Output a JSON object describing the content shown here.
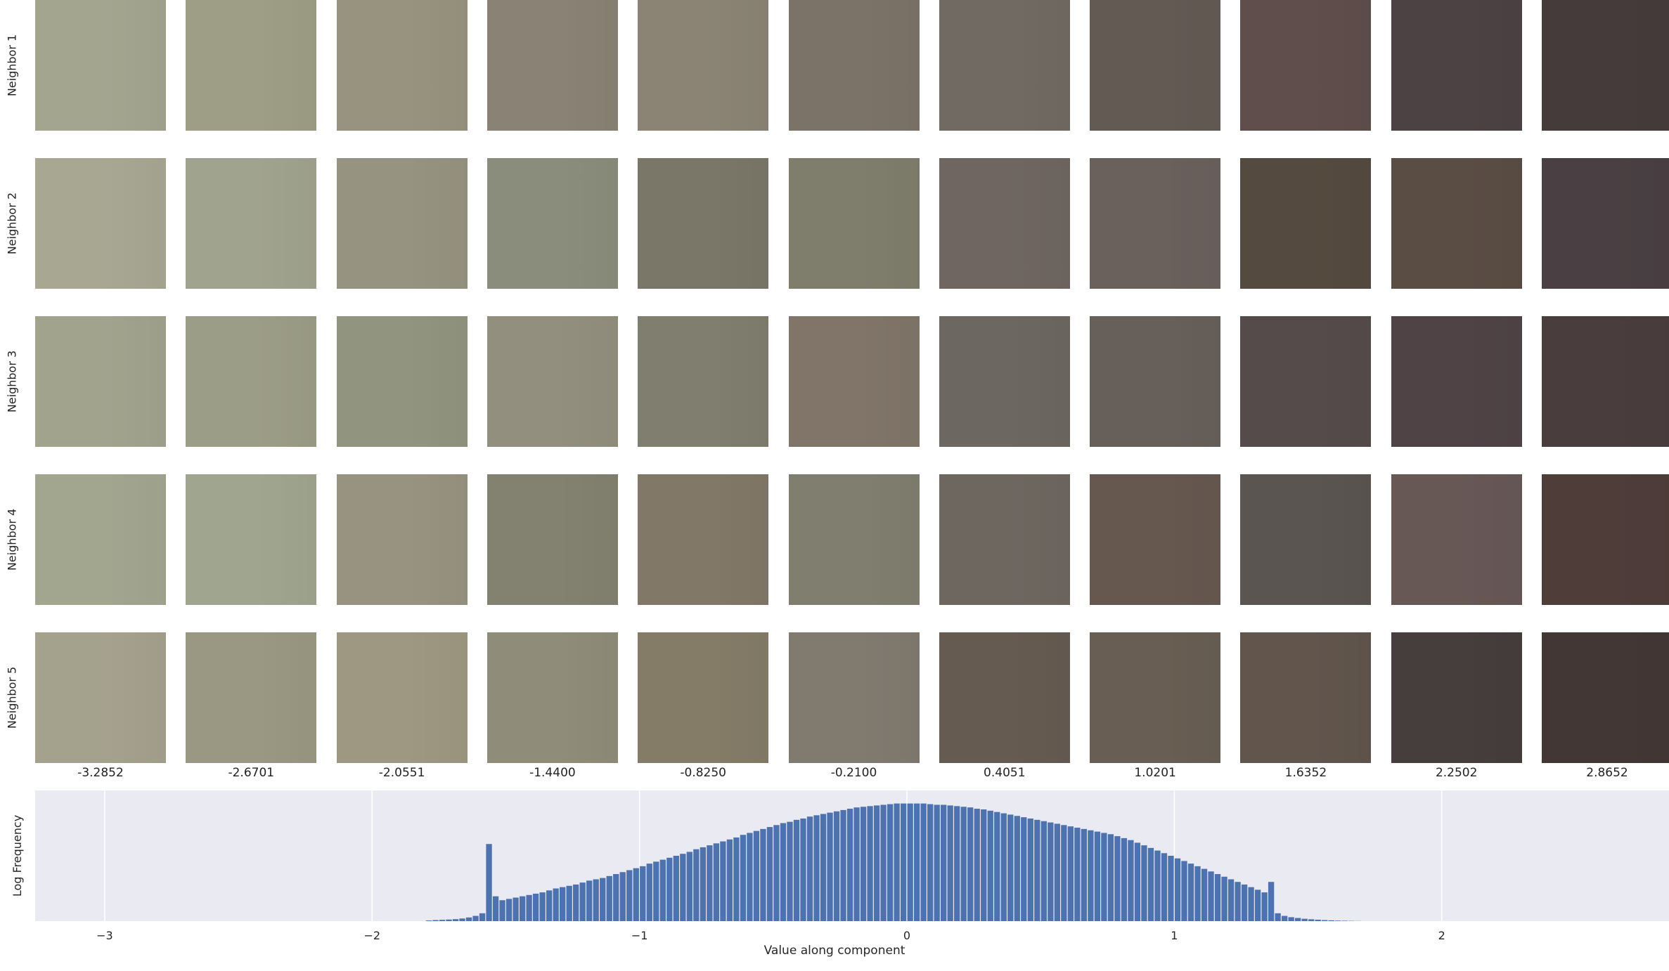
{
  "row_labels": [
    "Neighbor 1",
    "Neighbor 2",
    "Neighbor 3",
    "Neighbor 4",
    "Neighbor 5"
  ],
  "column_values": [
    "-3.2852",
    "-2.6701",
    "-2.0551",
    "-1.4400",
    "-0.8250",
    "-0.2100",
    "0.4051",
    "1.0201",
    "1.6352",
    "2.2502",
    "2.8652"
  ],
  "tile_colors": [
    [
      "#a3a58f",
      "#9e9e86",
      "#97937e",
      "#8a8274",
      "#8b8475",
      "#7c7368",
      "#716a62",
      "#645a54",
      "#5f4e4b",
      "#4c4143",
      "#463b3b"
    ],
    [
      "#a7a792",
      "#a0a38e",
      "#969380",
      "#8a8d7c",
      "#7a7768",
      "#7f7d6c",
      "#6f6661",
      "#6a605c",
      "#554a3f",
      "#5a4d44",
      "#4a4043"
    ],
    [
      "#a1a38d",
      "#9c9d86",
      "#91957f",
      "#928f7e",
      "#807e6e",
      "#807568",
      "#6d6761",
      "#67605a",
      "#564b4b",
      "#4f4346",
      "#4a3d3d"
    ],
    [
      "#a2a68f",
      "#a0a58f",
      "#979380",
      "#838170",
      "#827868",
      "#807e6e",
      "#6e6760",
      "#66584f",
      "#5b5551",
      "#675856",
      "#4f3d3a"
    ],
    [
      "#a4a18d",
      "#9a9882",
      "#9e9781",
      "#8f8c79",
      "#847c67",
      "#817a6f",
      "#665b51",
      "#685e53",
      "#61554c",
      "#463d3d",
      "#433736"
    ]
  ],
  "chart_data": {
    "type": "bar",
    "ylabel": "Log Frequency",
    "xlabel": "Value along component",
    "xlim": [
      -3.26,
      2.85
    ],
    "ylim": [
      0,
      1
    ],
    "y_scale": "log",
    "x_ticks": [
      -3,
      -2,
      -1,
      0,
      1,
      2
    ],
    "x_tick_labels": [
      "−3",
      "−2",
      "−1",
      "0",
      "1",
      "2"
    ],
    "grid": true,
    "bar_color": "#4c72b0",
    "plot_background": "#eaeaf2",
    "bins": {
      "x": [
        -1.8,
        -1.775,
        -1.75,
        -1.725,
        -1.7,
        -1.675,
        -1.65,
        -1.625,
        -1.6,
        -1.575,
        -1.55,
        -1.525,
        -1.5,
        -1.475,
        -1.45,
        -1.425,
        -1.4,
        -1.375,
        -1.35,
        -1.325,
        -1.3,
        -1.275,
        -1.25,
        -1.225,
        -1.2,
        -1.175,
        -1.15,
        -1.125,
        -1.1,
        -1.075,
        -1.05,
        -1.025,
        -1.0,
        -0.975,
        -0.95,
        -0.925,
        -0.9,
        -0.875,
        -0.85,
        -0.825,
        -0.8,
        -0.775,
        -0.75,
        -0.725,
        -0.7,
        -0.675,
        -0.65,
        -0.625,
        -0.6,
        -0.575,
        -0.55,
        -0.525,
        -0.5,
        -0.475,
        -0.45,
        -0.425,
        -0.4,
        -0.375,
        -0.35,
        -0.325,
        -0.3,
        -0.275,
        -0.25,
        -0.225,
        -0.2,
        -0.175,
        -0.15,
        -0.125,
        -0.1,
        -0.075,
        -0.05,
        -0.025,
        0.0,
        0.025,
        0.05,
        0.075,
        0.1,
        0.125,
        0.15,
        0.175,
        0.2,
        0.225,
        0.25,
        0.275,
        0.3,
        0.325,
        0.35,
        0.375,
        0.4,
        0.425,
        0.45,
        0.475,
        0.5,
        0.525,
        0.55,
        0.575,
        0.6,
        0.625,
        0.65,
        0.675,
        0.7,
        0.725,
        0.75,
        0.775,
        0.8,
        0.825,
        0.85,
        0.875,
        0.9,
        0.925,
        0.95,
        0.975,
        1.0,
        1.025,
        1.05,
        1.075,
        1.1,
        1.125,
        1.15,
        1.175,
        1.2,
        1.225,
        1.25,
        1.275,
        1.3,
        1.325,
        1.35,
        1.375,
        1.4,
        1.425,
        1.45,
        1.475,
        1.5,
        1.525,
        1.55,
        1.575,
        1.6,
        1.625,
        1.65,
        1.675
      ],
      "heights": [
        0.005,
        0.008,
        0.01,
        0.012,
        0.015,
        0.02,
        0.028,
        0.04,
        0.06,
        0.59,
        0.19,
        0.16,
        0.17,
        0.18,
        0.19,
        0.2,
        0.21,
        0.22,
        0.235,
        0.25,
        0.26,
        0.27,
        0.28,
        0.295,
        0.31,
        0.32,
        0.33,
        0.345,
        0.36,
        0.375,
        0.39,
        0.405,
        0.42,
        0.44,
        0.455,
        0.47,
        0.485,
        0.5,
        0.515,
        0.53,
        0.55,
        0.565,
        0.58,
        0.595,
        0.61,
        0.625,
        0.64,
        0.66,
        0.675,
        0.69,
        0.705,
        0.72,
        0.735,
        0.75,
        0.76,
        0.775,
        0.785,
        0.8,
        0.81,
        0.82,
        0.83,
        0.84,
        0.85,
        0.86,
        0.87,
        0.875,
        0.88,
        0.885,
        0.89,
        0.895,
        0.9,
        0.9,
        0.9,
        0.9,
        0.9,
        0.895,
        0.89,
        0.89,
        0.885,
        0.88,
        0.875,
        0.87,
        0.86,
        0.855,
        0.845,
        0.835,
        0.825,
        0.815,
        0.805,
        0.795,
        0.785,
        0.775,
        0.765,
        0.755,
        0.745,
        0.735,
        0.725,
        0.715,
        0.705,
        0.695,
        0.685,
        0.675,
        0.665,
        0.65,
        0.635,
        0.62,
        0.6,
        0.58,
        0.56,
        0.54,
        0.52,
        0.5,
        0.48,
        0.46,
        0.44,
        0.42,
        0.4,
        0.38,
        0.36,
        0.34,
        0.32,
        0.3,
        0.28,
        0.26,
        0.24,
        0.22,
        0.3,
        0.06,
        0.04,
        0.03,
        0.024,
        0.018,
        0.014,
        0.011,
        0.008,
        0.006,
        0.004,
        0.003,
        0.002,
        0.001
      ]
    }
  }
}
